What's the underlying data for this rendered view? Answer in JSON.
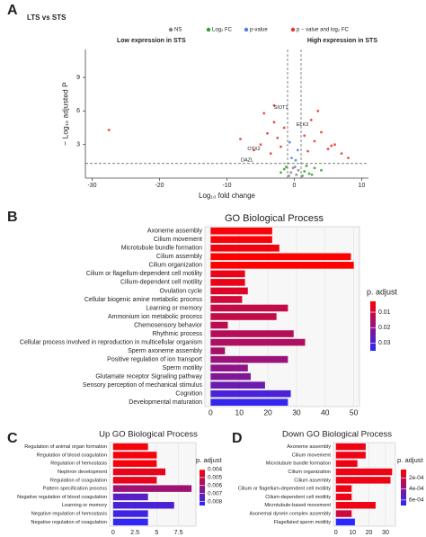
{
  "chart_data": [
    {
      "type": "volcano",
      "panel": "A",
      "title": "LTS vs STS",
      "xlabel": "Log₁₀ fold change",
      "ylabel": "− Log₁₀ adjusted P",
      "annotations": [
        "Low expression in STS",
        "High expression in STS"
      ],
      "xlim": [
        -31,
        11
      ],
      "ylim": [
        0,
        11.5
      ],
      "xticks": [
        -30,
        -20,
        -10,
        0,
        10
      ],
      "yticks": [
        3,
        6,
        9
      ],
      "vlines": [
        -1,
        1
      ],
      "hline": 1.3,
      "series": [
        {
          "name": "NS",
          "color": "#808080",
          "x": [
            -0.5,
            0.3,
            -0.2,
            0.6,
            -0.8,
            0.1
          ],
          "values": [
            0.5,
            0.3,
            0.9,
            0.7,
            0.2,
            1.0
          ]
        },
        {
          "name": "Log₂ FC",
          "color": "#2ca02c",
          "x": [
            1.5,
            2.2,
            3.0,
            1.8,
            -1.5,
            -2.0,
            2.6,
            4.0,
            1.2,
            -1.2
          ],
          "values": [
            0.6,
            0.4,
            0.9,
            1.1,
            0.8,
            0.5,
            0.3,
            0.7,
            0.2,
            1.0
          ]
        },
        {
          "name": "p-value",
          "color": "#4f7fe0",
          "x": [
            -0.4,
            0.5,
            0.2,
            -0.7
          ],
          "values": [
            1.8,
            2.5,
            1.6,
            3.2
          ]
        },
        {
          "name": "p − value and log₂ FC",
          "color": "#e8322d",
          "x": [
            -27.5,
            -8,
            -6,
            -5,
            -4,
            -3.5,
            -3,
            -2.5,
            -2,
            -1.5,
            1.5,
            2,
            2.5,
            3,
            4,
            5,
            6,
            7,
            8,
            -4.5,
            -3,
            3.5,
            5.5
          ],
          "values": [
            4.3,
            3.5,
            2.5,
            3.0,
            4.0,
            2.2,
            5.0,
            3.6,
            2.8,
            4.5,
            3.8,
            2.4,
            5.2,
            3.3,
            4.1,
            2.6,
            3.0,
            2.2,
            1.8,
            5.8,
            6.5,
            6.0,
            2.9
          ]
        }
      ],
      "gene_labels": [
        {
          "text": "SIOT1",
          "x": -2,
          "y": 6.3
        },
        {
          "text": "ELK3",
          "x": 1.2,
          "y": 4.8
        },
        {
          "text": "OTX2",
          "x": -6,
          "y": 2.6
        },
        {
          "text": "DAZL",
          "x": -7,
          "y": 1.6
        }
      ]
    },
    {
      "type": "hbar",
      "panel": "B",
      "title": "GO Biological Process",
      "categories": [
        "Axoneme assembly",
        "Cilium movement",
        "Microtubule bundle formation",
        "Cilium assembly",
        "Cilium organization",
        "Cilium or flagellum-dependent cell motility",
        "Cilium-dependent cell motility",
        "Ovulation cycle",
        "Cellular biogenic amine metabolic process",
        "Learning or memory",
        "Ammonium ion metabolic process",
        "Chemosensory behavior",
        "Rhythmic process",
        "Cellular process involved in reproduction in multicellular organism",
        "Sperm axoneme assembly",
        "Positive regulation of ion transport",
        "Sperm motility",
        "Glutamate receptor Signaling pathway",
        "Sensory perception of mechanical stimulus",
        "Cognition",
        "Developmental maturation"
      ],
      "values": [
        21.5,
        21.5,
        24,
        49,
        50,
        12,
        12,
        13,
        11,
        27,
        23,
        6,
        29,
        33,
        5,
        27,
        13,
        14,
        19,
        28,
        27
      ],
      "p_adjust": [
        0.004,
        0.004,
        0.005,
        0.003,
        0.003,
        0.006,
        0.006,
        0.008,
        0.01,
        0.012,
        0.012,
        0.013,
        0.014,
        0.015,
        0.016,
        0.018,
        0.02,
        0.022,
        0.025,
        0.03,
        0.033
      ],
      "xlim": [
        -2,
        52
      ],
      "xticks": [
        0,
        10,
        20,
        30,
        40,
        50
      ],
      "colorbar": {
        "title": "p. adjust",
        "clim": [
          0.003,
          0.035
        ],
        "ticks": [
          0.01,
          0.02,
          0.03
        ],
        "low_color": "#ff0000",
        "high_color": "#2828ff"
      }
    },
    {
      "type": "hbar",
      "panel": "C",
      "title": "Up GO Biological Process",
      "categories": [
        "Regulation of animal organ formation",
        "Regulation of blood coagulation",
        "Regulation of hemostasis",
        "Nephron development",
        "Regulation of coagulation",
        "Pattern specification process",
        "Negative regulation of blood coagulation",
        "Learning or memory",
        "Negative regulation of hemostasis",
        "Negative regulation of coagulation"
      ],
      "values": [
        4,
        5,
        5,
        6,
        5,
        9,
        4,
        7,
        4,
        4
      ],
      "p_adjust": [
        0.0042,
        0.0042,
        0.0042,
        0.0045,
        0.0045,
        0.006,
        0.0075,
        0.0078,
        0.008,
        0.0083
      ],
      "xlim": [
        -0.4,
        9.5
      ],
      "xticks": [
        0,
        2.5,
        5,
        7.5
      ],
      "colorbar": {
        "title": "p. adjust",
        "clim": [
          0.004,
          0.0085
        ],
        "ticks": [
          0.004,
          0.005,
          0.006,
          0.007,
          0.008
        ],
        "low_color": "#ff0000",
        "high_color": "#2828ff"
      }
    },
    {
      "type": "hbar",
      "panel": "D",
      "title": "Down GO Biological Process",
      "categories": [
        "Axoneme assembly",
        "Cilium movement",
        "Microtubule bundle formation",
        "Cilium organization",
        "Cilium assembly",
        "Cilium or flagellum-dependent cell motility",
        "Cilium-dependent cell motility",
        "Microtubule-based movement",
        "Axonemal dynein complex assembly",
        "Flagellated sperm motility"
      ],
      "values": [
        18,
        18,
        13,
        34,
        33,
        9.5,
        9.5,
        24,
        9.5,
        11.5
      ],
      "p_adjust": [
        0.0001,
        0.0001,
        0.0001,
        0.0001,
        0.0001,
        0.0001,
        0.0001,
        0.0001,
        0.0002,
        0.0007
      ],
      "xlim": [
        -1.5,
        36
      ],
      "xticks": [
        0,
        10,
        20,
        30
      ],
      "colorbar": {
        "title": "p. adjust",
        "clim": [
          5e-05,
          0.0007
        ],
        "ticks": [
          {
            "value": 0.0002,
            "label": "2e-04"
          },
          {
            "value": 0.0004,
            "label": "4e-04"
          },
          {
            "value": 0.0006,
            "label": "6e-04"
          }
        ],
        "low_color": "#ff0000",
        "high_color": "#2828ff"
      }
    }
  ]
}
